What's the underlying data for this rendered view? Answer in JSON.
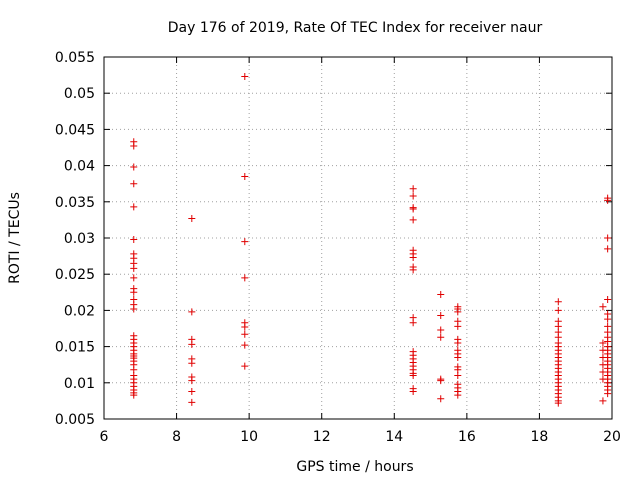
{
  "chart_data": {
    "type": "scatter",
    "title": "Day 176 of 2019, Rate Of TEC Index for receiver naur",
    "xlabel": "GPS time / hours",
    "ylabel": "ROTI / TECUs",
    "xlim": [
      6,
      20
    ],
    "ylim": [
      0.005,
      0.055
    ],
    "x_ticks": [
      "6",
      "8",
      "10",
      "12",
      "14",
      "16",
      "18",
      "20"
    ],
    "y_ticks": [
      "0.005",
      "0.01",
      "0.015",
      "0.02",
      "0.025",
      "0.03",
      "0.035",
      "0.04",
      "0.045",
      "0.05",
      "0.055"
    ],
    "grid": true,
    "marker": "+",
    "color": "#e00000",
    "series": [
      {
        "name": "ROTI",
        "points": [
          [
            6.82,
            0.0433
          ],
          [
            6.82,
            0.0427
          ],
          [
            6.82,
            0.0398
          ],
          [
            6.82,
            0.0375
          ],
          [
            6.82,
            0.0343
          ],
          [
            6.82,
            0.0298
          ],
          [
            6.82,
            0.0278
          ],
          [
            6.82,
            0.0272
          ],
          [
            6.82,
            0.0265
          ],
          [
            6.82,
            0.0258
          ],
          [
            6.82,
            0.0245
          ],
          [
            6.82,
            0.023
          ],
          [
            6.82,
            0.0225
          ],
          [
            6.82,
            0.0215
          ],
          [
            6.82,
            0.0208
          ],
          [
            6.82,
            0.0202
          ],
          [
            6.82,
            0.0165
          ],
          [
            6.82,
            0.016
          ],
          [
            6.82,
            0.0155
          ],
          [
            6.82,
            0.015
          ],
          [
            6.82,
            0.0145
          ],
          [
            6.82,
            0.014
          ],
          [
            6.82,
            0.0137
          ],
          [
            6.82,
            0.0134
          ],
          [
            6.82,
            0.013
          ],
          [
            6.82,
            0.0125
          ],
          [
            6.82,
            0.0118
          ],
          [
            6.82,
            0.011
          ],
          [
            6.82,
            0.0105
          ],
          [
            6.82,
            0.01
          ],
          [
            6.82,
            0.0095
          ],
          [
            6.82,
            0.009
          ],
          [
            6.82,
            0.0086
          ],
          [
            6.82,
            0.0083
          ],
          [
            8.42,
            0.0327
          ],
          [
            8.42,
            0.0198
          ],
          [
            8.42,
            0.016
          ],
          [
            8.42,
            0.0153
          ],
          [
            8.42,
            0.0133
          ],
          [
            8.42,
            0.0127
          ],
          [
            8.42,
            0.0108
          ],
          [
            8.42,
            0.0103
          ],
          [
            8.42,
            0.0088
          ],
          [
            8.42,
            0.0073
          ],
          [
            9.88,
            0.0523
          ],
          [
            9.88,
            0.0385
          ],
          [
            9.88,
            0.0295
          ],
          [
            9.88,
            0.0245
          ],
          [
            9.88,
            0.0183
          ],
          [
            9.88,
            0.0177
          ],
          [
            9.88,
            0.0167
          ],
          [
            9.88,
            0.0152
          ],
          [
            9.88,
            0.0123
          ],
          [
            14.52,
            0.0368
          ],
          [
            14.52,
            0.0358
          ],
          [
            14.52,
            0.0342
          ],
          [
            14.52,
            0.034
          ],
          [
            14.52,
            0.0325
          ],
          [
            14.52,
            0.0283
          ],
          [
            14.52,
            0.0278
          ],
          [
            14.52,
            0.0273
          ],
          [
            14.52,
            0.026
          ],
          [
            14.52,
            0.0256
          ],
          [
            14.52,
            0.019
          ],
          [
            14.52,
            0.0183
          ],
          [
            14.52,
            0.0143
          ],
          [
            14.52,
            0.0138
          ],
          [
            14.52,
            0.0133
          ],
          [
            14.52,
            0.0128
          ],
          [
            14.52,
            0.0123
          ],
          [
            14.52,
            0.0118
          ],
          [
            14.52,
            0.0113
          ],
          [
            14.52,
            0.011
          ],
          [
            14.52,
            0.0092
          ],
          [
            14.52,
            0.0088
          ],
          [
            15.28,
            0.0222
          ],
          [
            15.28,
            0.0193
          ],
          [
            15.28,
            0.0173
          ],
          [
            15.28,
            0.0163
          ],
          [
            15.28,
            0.0105
          ],
          [
            15.28,
            0.0103
          ],
          [
            15.28,
            0.0078
          ],
          [
            15.75,
            0.0205
          ],
          [
            15.75,
            0.0202
          ],
          [
            15.75,
            0.0198
          ],
          [
            15.75,
            0.0185
          ],
          [
            15.75,
            0.0178
          ],
          [
            15.75,
            0.016
          ],
          [
            15.75,
            0.0155
          ],
          [
            15.75,
            0.0145
          ],
          [
            15.75,
            0.014
          ],
          [
            15.75,
            0.0135
          ],
          [
            15.75,
            0.0122
          ],
          [
            15.75,
            0.0118
          ],
          [
            15.75,
            0.011
          ],
          [
            15.75,
            0.0098
          ],
          [
            15.75,
            0.0093
          ],
          [
            15.75,
            0.0088
          ],
          [
            15.75,
            0.0083
          ],
          [
            18.52,
            0.0212
          ],
          [
            18.52,
            0.02
          ],
          [
            18.52,
            0.0185
          ],
          [
            18.52,
            0.0178
          ],
          [
            18.52,
            0.017
          ],
          [
            18.52,
            0.0163
          ],
          [
            18.52,
            0.0155
          ],
          [
            18.52,
            0.015
          ],
          [
            18.52,
            0.0145
          ],
          [
            18.52,
            0.014
          ],
          [
            18.52,
            0.0135
          ],
          [
            18.52,
            0.013
          ],
          [
            18.52,
            0.0125
          ],
          [
            18.52,
            0.012
          ],
          [
            18.52,
            0.0115
          ],
          [
            18.52,
            0.011
          ],
          [
            18.52,
            0.0105
          ],
          [
            18.52,
            0.01
          ],
          [
            18.52,
            0.0095
          ],
          [
            18.52,
            0.009
          ],
          [
            18.52,
            0.0085
          ],
          [
            18.52,
            0.008
          ],
          [
            18.52,
            0.0075
          ],
          [
            18.52,
            0.0072
          ],
          [
            19.75,
            0.0205
          ],
          [
            19.75,
            0.0155
          ],
          [
            19.75,
            0.0145
          ],
          [
            19.75,
            0.0135
          ],
          [
            19.75,
            0.0125
          ],
          [
            19.75,
            0.0115
          ],
          [
            19.75,
            0.0105
          ],
          [
            19.75,
            0.0075
          ],
          [
            19.88,
            0.0355
          ],
          [
            19.88,
            0.0352
          ],
          [
            19.88,
            0.03
          ],
          [
            19.88,
            0.0285
          ],
          [
            19.88,
            0.0215
          ],
          [
            19.88,
            0.0195
          ],
          [
            19.88,
            0.0188
          ],
          [
            19.88,
            0.0178
          ],
          [
            19.88,
            0.017
          ],
          [
            19.88,
            0.0163
          ],
          [
            19.88,
            0.0157
          ],
          [
            19.88,
            0.015
          ],
          [
            19.88,
            0.0145
          ],
          [
            19.88,
            0.014
          ],
          [
            19.88,
            0.0135
          ],
          [
            19.88,
            0.013
          ],
          [
            19.88,
            0.0125
          ],
          [
            19.88,
            0.012
          ],
          [
            19.88,
            0.0115
          ],
          [
            19.88,
            0.011
          ],
          [
            19.88,
            0.0105
          ],
          [
            19.88,
            0.01
          ],
          [
            19.88,
            0.0095
          ],
          [
            19.88,
            0.009
          ],
          [
            19.88,
            0.0085
          ]
        ]
      }
    ]
  }
}
